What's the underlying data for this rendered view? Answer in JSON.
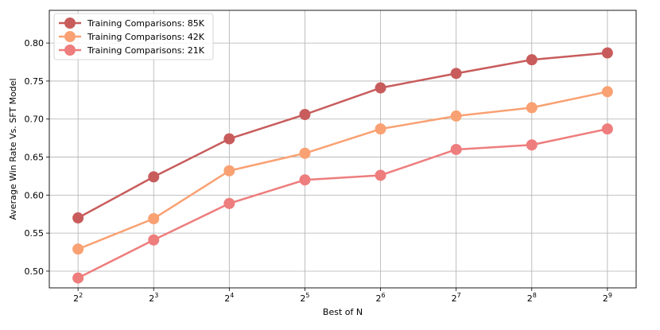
{
  "chart_data": {
    "type": "line",
    "title": "",
    "xlabel": "Best of N",
    "ylabel": "Average Win Rate Vs. SFT Model",
    "x_tick_labels": [
      {
        "base": "2",
        "exp": "2"
      },
      {
        "base": "2",
        "exp": "3"
      },
      {
        "base": "2",
        "exp": "4"
      },
      {
        "base": "2",
        "exp": "5"
      },
      {
        "base": "2",
        "exp": "6"
      },
      {
        "base": "2",
        "exp": "7"
      },
      {
        "base": "2",
        "exp": "8"
      },
      {
        "base": "2",
        "exp": "9"
      }
    ],
    "x": [
      2,
      3,
      4,
      5,
      6,
      7,
      8,
      9
    ],
    "x_scale": "log2",
    "xlim": [
      1.62,
      9.38
    ],
    "ylim": [
      0.478,
      0.843
    ],
    "y_ticks": [
      "0.50",
      "0.55",
      "0.60",
      "0.65",
      "0.70",
      "0.75",
      "0.80"
    ],
    "grid": true,
    "legend_position": "top-left",
    "series": [
      {
        "name": "Training Comparisons: 85K",
        "color": "#c85c5c",
        "values": [
          0.57,
          0.624,
          0.674,
          0.706,
          0.741,
          0.76,
          0.778,
          0.787
        ]
      },
      {
        "name": "Training Comparisons: 42K",
        "color": "#f9a173",
        "values": [
          0.529,
          0.569,
          0.632,
          0.655,
          0.687,
          0.704,
          0.715,
          0.736
        ]
      },
      {
        "name": "Training Comparisons: 21K",
        "color": "#ee7d7d",
        "values": [
          0.491,
          0.541,
          0.589,
          0.62,
          0.626,
          0.66,
          0.666,
          0.687
        ]
      }
    ]
  }
}
